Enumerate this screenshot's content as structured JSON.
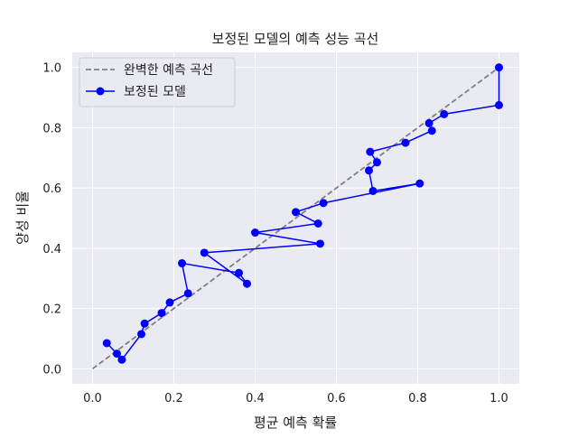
{
  "chart_data": {
    "type": "line",
    "title": "보정된 모델의 예측 성능 곡선",
    "xlabel": "평균 예측 확률",
    "ylabel": "양성 비율",
    "xlim": [
      -0.05,
      1.05
    ],
    "ylim": [
      -0.05,
      1.05
    ],
    "xticks": [
      "0.0",
      "0.2",
      "0.4",
      "0.6",
      "0.8",
      "1.0"
    ],
    "yticks": [
      "0.0",
      "0.2",
      "0.4",
      "0.6",
      "0.8",
      "1.0"
    ],
    "grid": true,
    "legend_position": "top-left",
    "background": "#eaeaf2",
    "series": [
      {
        "name": "완벽한 예측 곡선",
        "style": "dashed",
        "color": "#808080",
        "marker": false,
        "x": [
          0,
          1
        ],
        "y": [
          0,
          1
        ]
      },
      {
        "name": "보정된 모델",
        "style": "solid",
        "color": "#0000ff",
        "marker": true,
        "x": [
          0.035,
          0.06,
          0.072,
          0.12,
          0.128,
          0.17,
          0.19,
          0.235,
          0.22,
          0.36,
          0.38,
          0.275,
          0.56,
          0.4,
          0.555,
          0.5,
          0.568,
          0.805,
          0.69,
          0.68,
          0.7,
          0.683,
          0.77,
          0.835,
          0.828,
          0.865,
          1.0,
          1.0
        ],
        "y": [
          0.085,
          0.05,
          0.03,
          0.115,
          0.15,
          0.185,
          0.22,
          0.25,
          0.35,
          0.318,
          0.282,
          0.385,
          0.415,
          0.452,
          0.482,
          0.52,
          0.55,
          0.615,
          0.59,
          0.658,
          0.685,
          0.72,
          0.75,
          0.79,
          0.815,
          0.845,
          0.875,
          1.0
        ]
      }
    ]
  }
}
